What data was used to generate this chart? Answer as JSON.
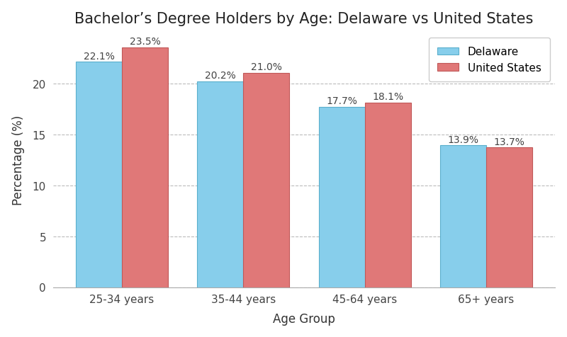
{
  "title": "Bachelor’s Degree Holders by Age: Delaware vs United States",
  "xlabel": "Age Group",
  "ylabel": "Percentage (%)",
  "categories": [
    "25-34 years",
    "35-44 years",
    "45-64 years",
    "65+ years"
  ],
  "delaware": [
    22.1,
    20.2,
    17.7,
    13.9
  ],
  "us": [
    23.5,
    21.0,
    18.1,
    13.7
  ],
  "delaware_color": "#87CEEB",
  "us_color": "#E07878",
  "delaware_edge": "#5aafcc",
  "us_edge": "#c05858",
  "delaware_label": "Delaware",
  "us_label": "United States",
  "ylim": [
    0,
    25
  ],
  "yticks": [
    0,
    5,
    10,
    15,
    20
  ],
  "bar_width": 0.38,
  "grid_color": "#bbbbbb",
  "grid_style": "--",
  "background_color": "#ffffff",
  "title_fontsize": 15,
  "axis_label_fontsize": 12,
  "tick_fontsize": 11,
  "annotation_fontsize": 10
}
